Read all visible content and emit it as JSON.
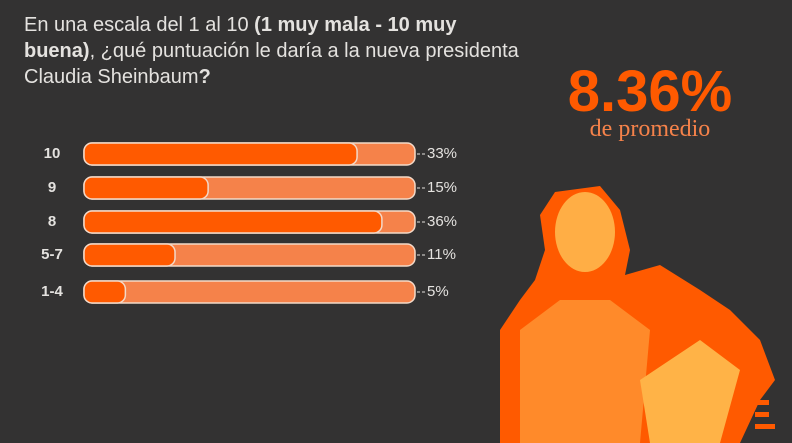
{
  "chart_data": {
    "type": "bar",
    "title_parts": [
      "En una escala del 1 al 10 ",
      "(1 muy mala - 10 muy buena)",
      ", ¿qué puntuación le daría a la nueva presidenta Claudia Sheinbaum",
      "?"
    ],
    "annotations": [
      "8.36%",
      "de promedio"
    ],
    "categories": [
      "10",
      "9",
      "8",
      "5-7",
      "1-4"
    ],
    "values": [
      33,
      15,
      36,
      11,
      5
    ],
    "value_labels": [
      "33%",
      "15%",
      "36%",
      "11%",
      "5%"
    ],
    "color": "#ff5a00",
    "xlim": [
      0,
      40
    ]
  }
}
